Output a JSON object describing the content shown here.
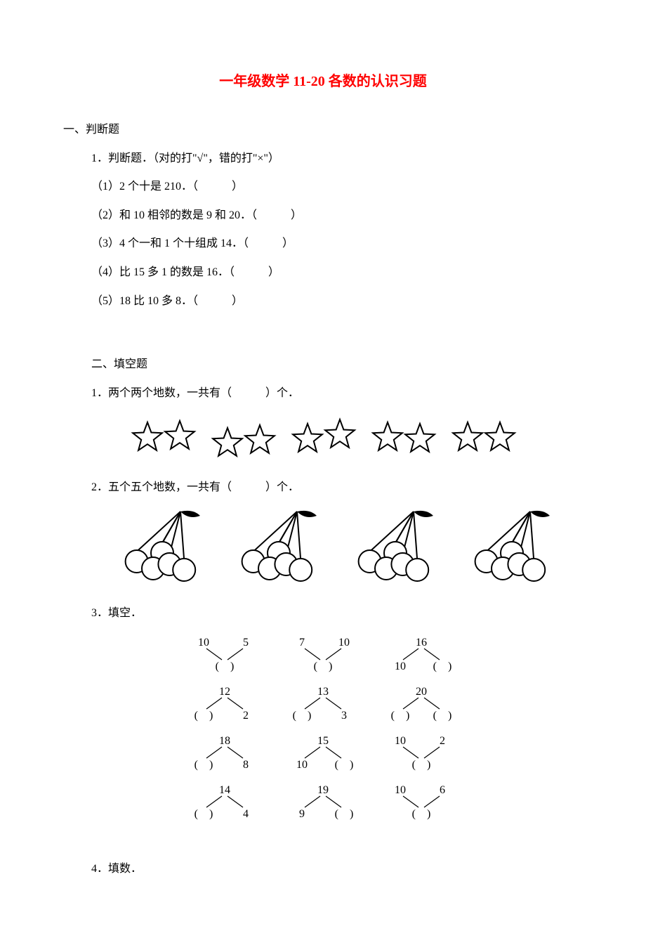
{
  "title": "一年级数学 11-20 各数的认识习题",
  "section1": {
    "heading": "一、判断题",
    "q1_stem": "1．判断题．（对的打\"√\"，错的打\"×\"）",
    "q1_1": "（1）2 个十是 210．（　　　）",
    "q1_2": "（2）和 10 相邻的数是 9 和 20．（　　　）",
    "q1_3": "（3）4 个一和 1 个十组成 14．（　　　）",
    "q1_4": "（4）比 15 多 1 的数是 16．（　　　）",
    "q1_5": "（5）18 比 10 多 8．（　　　）"
  },
  "section2": {
    "heading": "二、填空题",
    "q1": "1．两个两个地数，一共有（　　　）个．",
    "stars": {
      "count": 10,
      "groups": [
        2,
        2,
        2,
        2,
        2
      ],
      "star_size": 44,
      "gap_inner": 2,
      "gap_group": 22,
      "stroke": "#000000",
      "fill": "none",
      "y_jitter": [
        0,
        -2,
        8,
        4,
        2,
        -4,
        0,
        2,
        0,
        0
      ]
    },
    "q2": "2．五个五个地数，一共有（　　　）个．",
    "cherries": {
      "groups": 4,
      "per_group": 5,
      "stroke": "#000000",
      "fill": "#ffffff",
      "bunch_w": 130,
      "bunch_h": 105,
      "gap": 36,
      "circle_r": 16
    },
    "q3": "3．填空．",
    "bonds": {
      "fontsize": 16,
      "col_gap": 140,
      "row_gap": 70,
      "branch_h": 28,
      "branch_w": 26,
      "data": [
        [
          {
            "type": "join",
            "tl": "10",
            "tr": "5",
            "b": "(　)"
          },
          {
            "type": "join",
            "tl": "7",
            "tr": "10",
            "b": "(　)"
          },
          {
            "type": "split",
            "t": "16",
            "bl": "10",
            "br": "(　)"
          }
        ],
        [
          {
            "type": "split",
            "t": "12",
            "bl": "(　)",
            "br": "2"
          },
          {
            "type": "split",
            "t": "13",
            "bl": "(　)",
            "br": "3"
          },
          {
            "type": "split",
            "t": "20",
            "bl": "(　)",
            "br": "(　)"
          }
        ],
        [
          {
            "type": "split",
            "t": "18",
            "bl": "(　)",
            "br": "8"
          },
          {
            "type": "split",
            "t": "15",
            "bl": "10",
            "br": "(　)"
          },
          {
            "type": "join",
            "tl": "10",
            "tr": "2",
            "b": "(　)"
          }
        ],
        [
          {
            "type": "split",
            "t": "14",
            "bl": "(　)",
            "br": "4"
          },
          {
            "type": "split",
            "t": "19",
            "bl": "9",
            "br": "(　)"
          },
          {
            "type": "join",
            "tl": "10",
            "tr": "6",
            "b": "(　)"
          }
        ]
      ]
    },
    "q4": "4．填数．"
  },
  "colors": {
    "title": "#ff0000",
    "text": "#000000",
    "bg": "#ffffff"
  }
}
